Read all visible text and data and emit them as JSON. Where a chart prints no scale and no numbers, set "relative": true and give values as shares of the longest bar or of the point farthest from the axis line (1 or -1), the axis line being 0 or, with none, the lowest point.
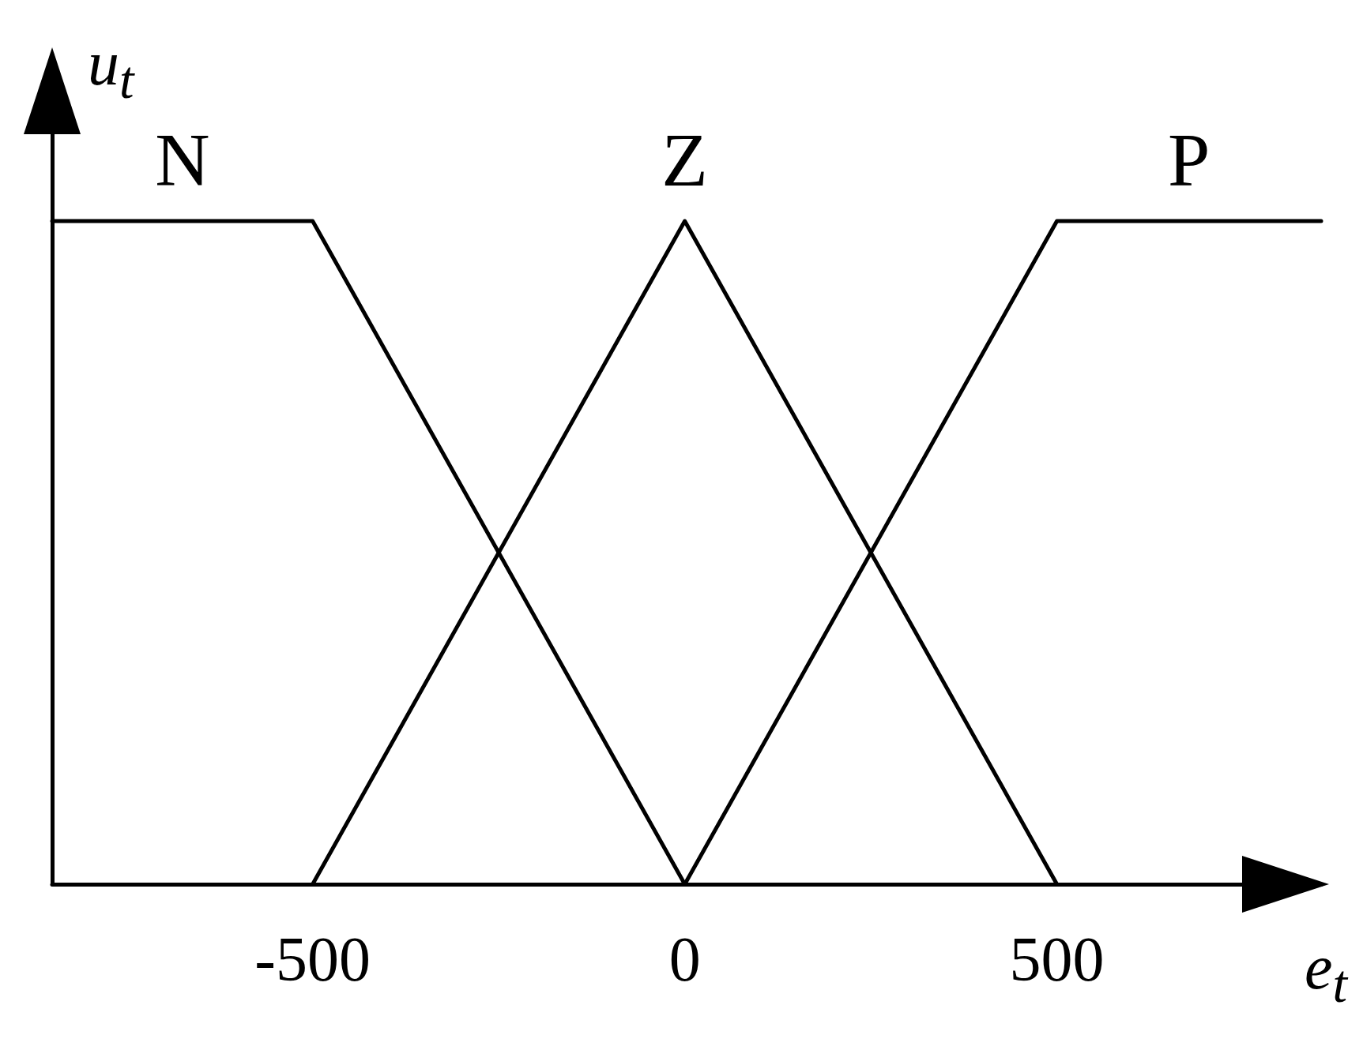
{
  "chart_data": {
    "type": "line",
    "relative": true,
    "xlabel": "e$_{t}$",
    "ylabel": "u$_{t}$",
    "xlim": [
      -850,
      855
    ],
    "xticks": [
      -500,
      0,
      500
    ],
    "series": [
      {
        "name": "N",
        "color": "#000000",
        "x": [
          -850,
          -500,
          0
        ],
        "values": [
          1,
          1,
          0
        ]
      },
      {
        "name": "Z",
        "color": "#000000",
        "x": [
          -500,
          0,
          500
        ],
        "values": [
          0,
          1,
          0
        ]
      },
      {
        "name": "P",
        "color": "#000000",
        "x": [
          0,
          500,
          855
        ],
        "values": [
          0,
          1,
          1
        ]
      }
    ],
    "marker": "none",
    "line_style": "solid",
    "legend": false,
    "grid": false
  }
}
